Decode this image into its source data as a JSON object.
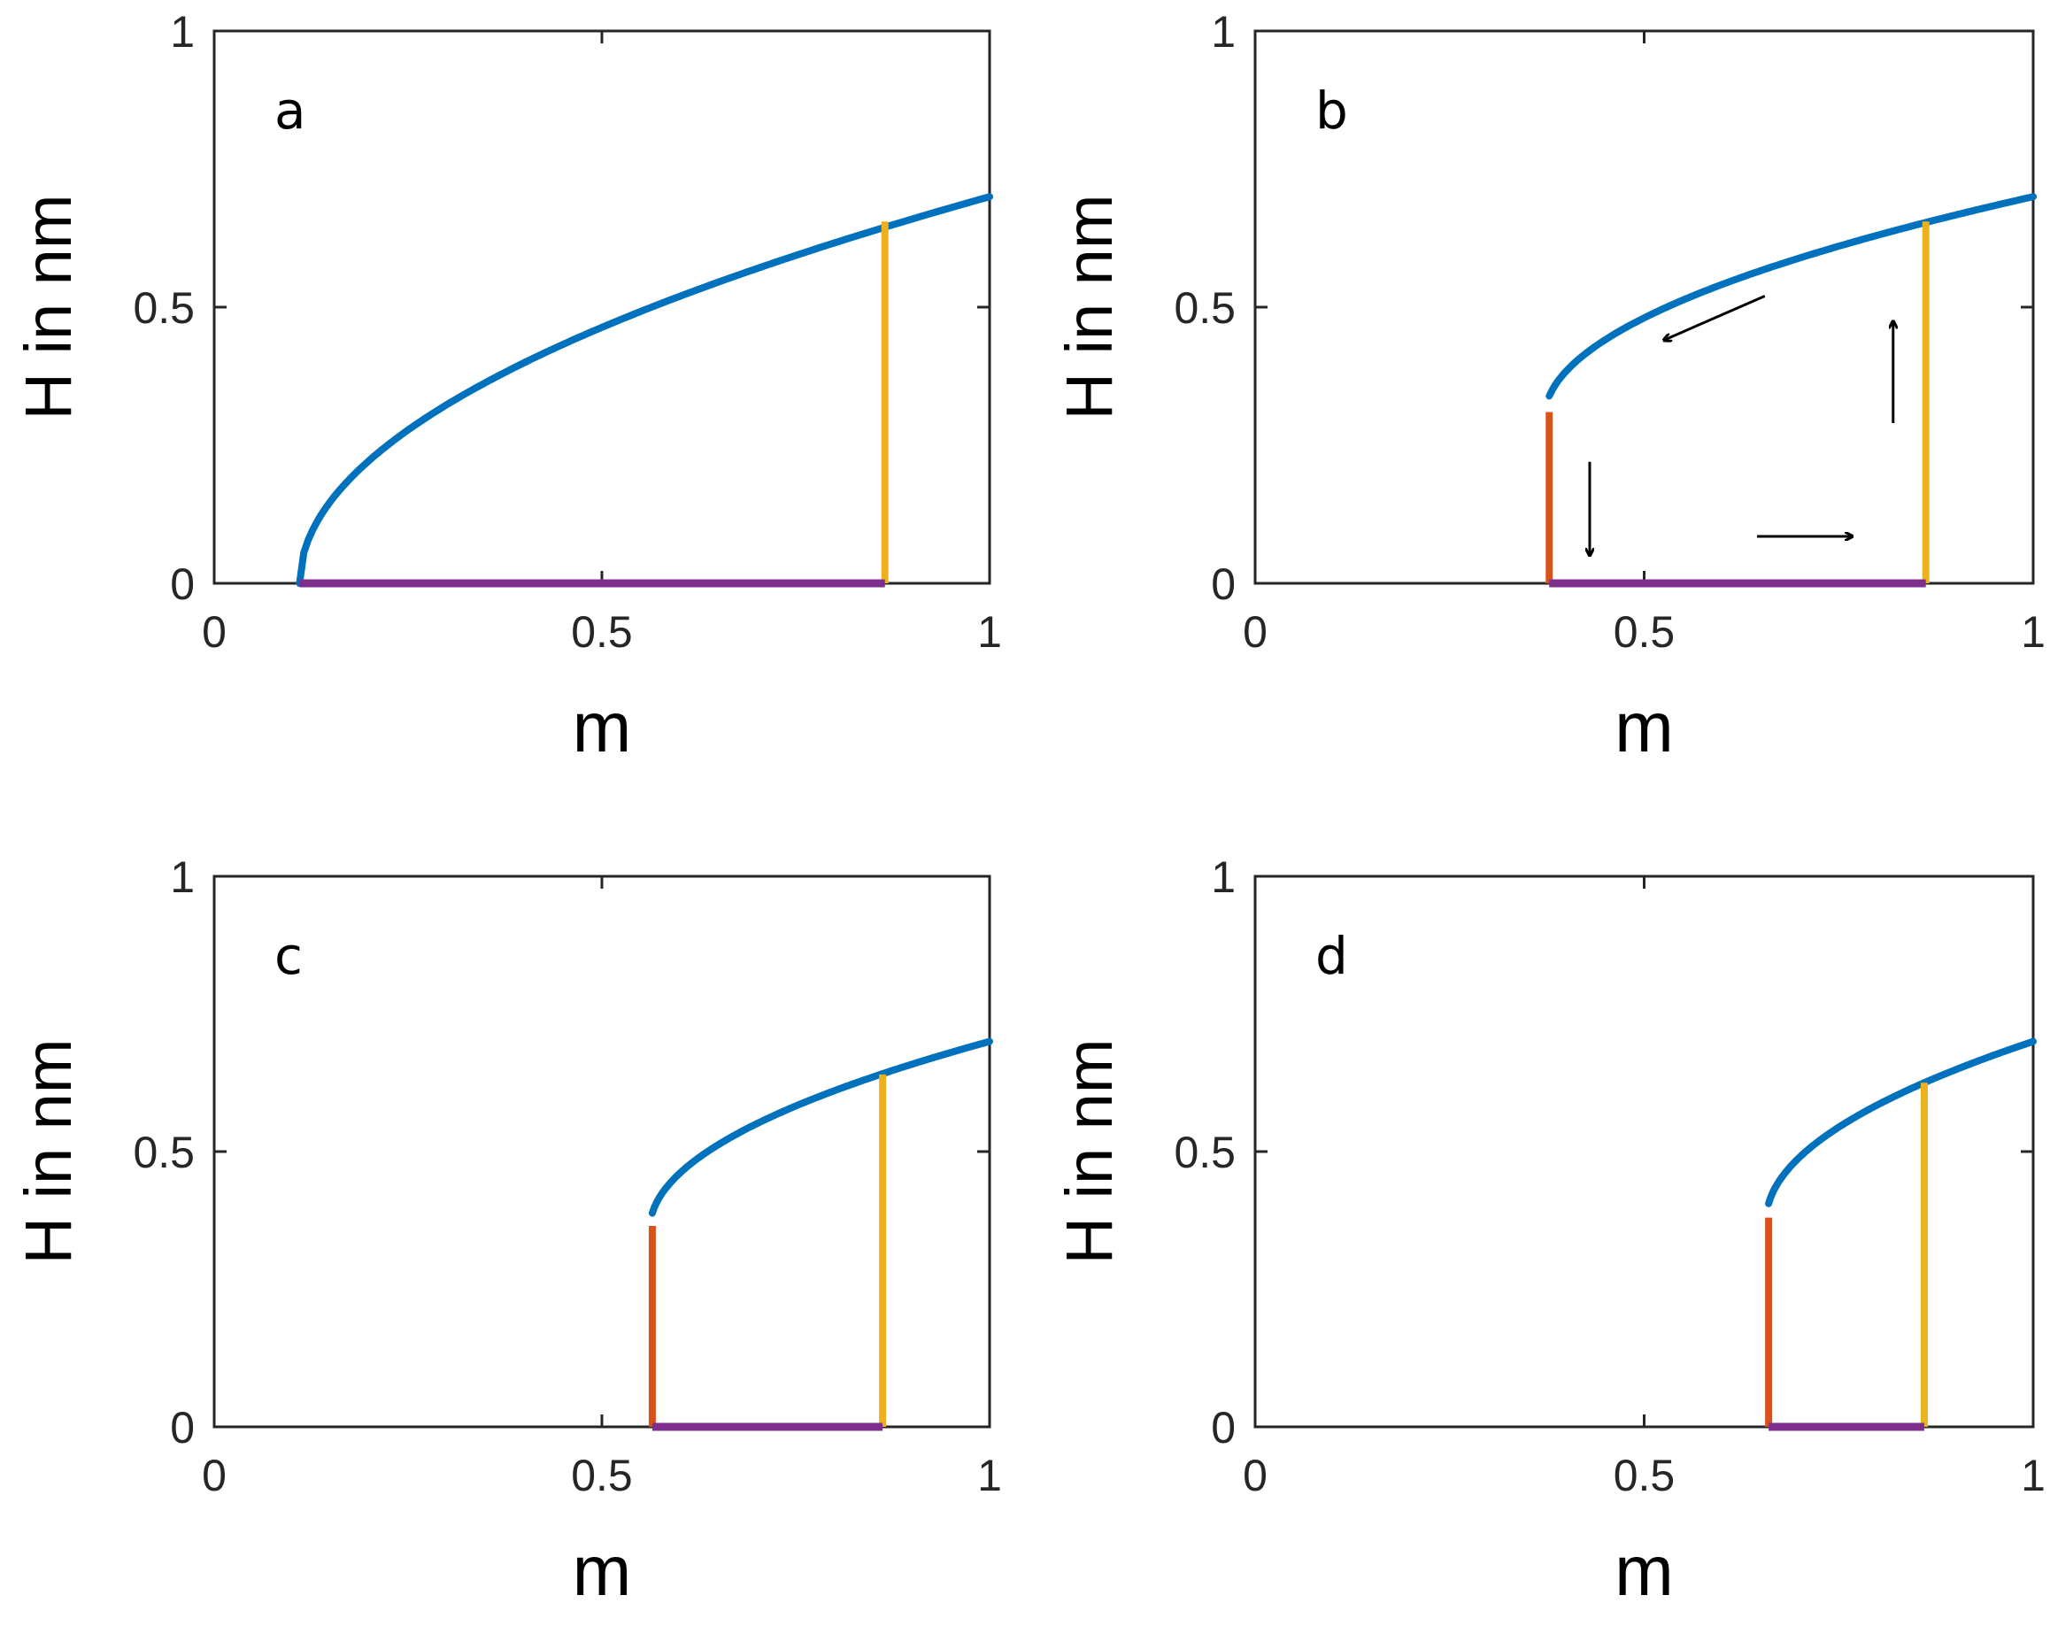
{
  "figure": {
    "panel_count": 4
  },
  "colors": {
    "stable_branch": "#0072BD",
    "drop_line": "#D95319",
    "jump_line": "#EDB120",
    "zero_branch": "#7E2F8E",
    "axes": "#262626",
    "arrow": "#000000"
  },
  "chart_data": [
    {
      "type": "line",
      "panel": "a",
      "xlabel": "m",
      "ylabel": "H in nm",
      "xlim": [
        0,
        1
      ],
      "ylim": [
        0,
        1
      ],
      "xticks": [
        0,
        0.5,
        1
      ],
      "yticks": [
        0,
        0.5,
        1
      ],
      "xtick_labels": [
        "0",
        "0.5",
        "1"
      ],
      "ytick_labels": [
        "0",
        "0.5",
        "1"
      ],
      "series": [
        {
          "name": "upper branch",
          "color": "#0072BD",
          "x_start": 0.11,
          "x_end": 1,
          "h_at_start": 0,
          "h_at_1": 0.7,
          "x_fold": 0.11,
          "h_fold": 0
        },
        {
          "name": "drop",
          "color": "#D95319",
          "x": 0.11,
          "y": [
            0,
            0
          ]
        },
        {
          "name": "jump",
          "color": "#EDB120",
          "x": 0.865,
          "y": [
            0,
            0.655
          ]
        },
        {
          "name": "zero branch",
          "color": "#7E2F8E",
          "x": [
            0.11,
            0.865
          ],
          "y": 0
        }
      ],
      "arrows": []
    },
    {
      "type": "line",
      "panel": "b",
      "xlabel": "m",
      "ylabel": "H in nm",
      "xlim": [
        0,
        1
      ],
      "ylim": [
        0,
        1
      ],
      "xticks": [
        0,
        0.5,
        1
      ],
      "yticks": [
        0,
        0.5,
        1
      ],
      "xtick_labels": [
        "0",
        "0.5",
        "1"
      ],
      "ytick_labels": [
        "0",
        "0.5",
        "1"
      ],
      "series": [
        {
          "name": "upper branch",
          "color": "#0072BD",
          "x_start": 0.378,
          "x_end": 1,
          "h_at_start": 0.31,
          "h_at_1": 0.7,
          "x_fold": 0.372,
          "h_fold": 0.3
        },
        {
          "name": "drop",
          "color": "#D95319",
          "x": 0.378,
          "y": [
            0,
            0.31
          ]
        },
        {
          "name": "jump",
          "color": "#EDB120",
          "x": 0.862,
          "y": [
            0,
            0.655
          ]
        },
        {
          "name": "zero branch",
          "color": "#7E2F8E",
          "x": [
            0.378,
            0.862
          ],
          "y": 0
        }
      ],
      "arrows": [
        {
          "from": [
            0.655,
            0.52
          ],
          "to": [
            0.525,
            0.44
          ]
        },
        {
          "from": [
            0.82,
            0.29
          ],
          "to": [
            0.82,
            0.475
          ]
        },
        {
          "from": [
            0.43,
            0.22
          ],
          "to": [
            0.43,
            0.05
          ]
        },
        {
          "from": [
            0.645,
            0.085
          ],
          "to": [
            0.768,
            0.085
          ]
        }
      ]
    },
    {
      "type": "line",
      "panel": "c",
      "xlabel": "m",
      "ylabel": "H in nm",
      "xlim": [
        0,
        1
      ],
      "ylim": [
        0,
        1
      ],
      "xticks": [
        0,
        0.5,
        1
      ],
      "yticks": [
        0,
        0.5,
        1
      ],
      "xtick_labels": [
        "0",
        "0.5",
        "1"
      ],
      "ytick_labels": [
        "0",
        "0.5",
        "1"
      ],
      "series": [
        {
          "name": "upper branch",
          "color": "#0072BD",
          "x_start": 0.565,
          "x_end": 1,
          "h_at_start": 0.365,
          "h_at_1": 0.7,
          "x_fold": 0.562,
          "h_fold": 0.36
        },
        {
          "name": "drop",
          "color": "#D95319",
          "x": 0.565,
          "y": [
            0,
            0.365
          ]
        },
        {
          "name": "jump",
          "color": "#EDB120",
          "x": 0.862,
          "y": [
            0,
            0.64
          ]
        },
        {
          "name": "zero branch",
          "color": "#7E2F8E",
          "x": [
            0.565,
            0.862
          ],
          "y": 0
        }
      ],
      "arrows": []
    },
    {
      "type": "line",
      "panel": "d",
      "xlabel": "m",
      "ylabel": "H in nm",
      "xlim": [
        0,
        1
      ],
      "ylim": [
        0,
        1
      ],
      "xticks": [
        0,
        0.5,
        1
      ],
      "yticks": [
        0,
        0.5,
        1
      ],
      "xtick_labels": [
        "0",
        "0.5",
        "1"
      ],
      "ytick_labels": [
        "0",
        "0.5",
        "1"
      ],
      "series": [
        {
          "name": "upper branch",
          "color": "#0072BD",
          "x_start": 0.66,
          "x_end": 1,
          "h_at_start": 0.38,
          "h_at_1": 0.7,
          "x_fold": 0.657,
          "h_fold": 0.375
        },
        {
          "name": "drop",
          "color": "#D95319",
          "x": 0.66,
          "y": [
            0,
            0.38
          ]
        },
        {
          "name": "jump",
          "color": "#EDB120",
          "x": 0.86,
          "y": [
            0,
            0.625
          ]
        },
        {
          "name": "zero branch",
          "color": "#7E2F8E",
          "x": [
            0.66,
            0.86
          ],
          "y": 0
        }
      ],
      "arrows": []
    }
  ]
}
